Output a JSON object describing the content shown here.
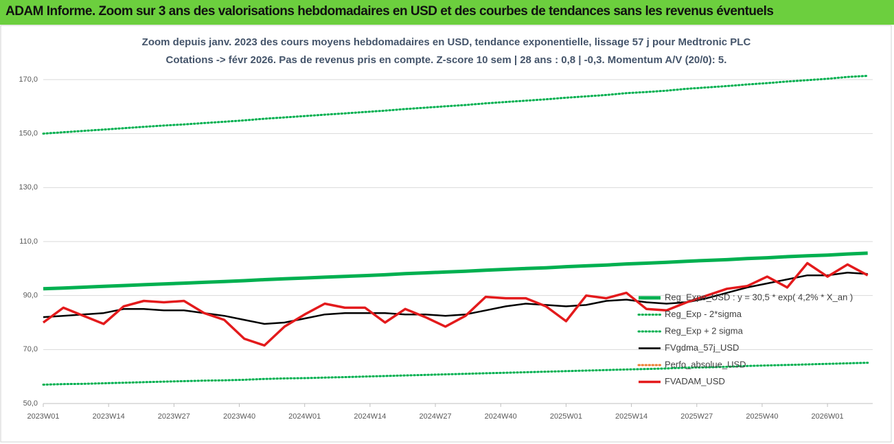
{
  "header": "ADAM Informe. Zoom sur 3 ans des valorisations hebdomadaires en USD et des courbes de tendances sans les revenus éventuels",
  "chart_data": {
    "type": "line",
    "title": [
      "Zoom depuis janv. 2023 des cours moyens hebdomadaires en USD, tendance exponentielle, lissage 57 j pour Medtronic PLC",
      "Cotations -> févr 2026. Pas de revenus pris en compte. Z-score 10 sem | 28 ans : 0,8 | -0,3. Momentum A/V (20/0): 5."
    ],
    "x": [
      0,
      4,
      8,
      12,
      16,
      20,
      24,
      28,
      32,
      36,
      40,
      44,
      48,
      52,
      56,
      60,
      64,
      68,
      72,
      76,
      80,
      84,
      88,
      92,
      96,
      100,
      104,
      108,
      112,
      116,
      120,
      124,
      128,
      132,
      136,
      140,
      144,
      148,
      152,
      156,
      160,
      164
    ],
    "xlim": [
      0,
      165
    ],
    "xticks": [
      {
        "value": 0,
        "label": "2023W01"
      },
      {
        "value": 13,
        "label": "2023W14"
      },
      {
        "value": 26,
        "label": "2023W27"
      },
      {
        "value": 39,
        "label": "2023W40"
      },
      {
        "value": 52,
        "label": "2024W01"
      },
      {
        "value": 65,
        "label": "2024W14"
      },
      {
        "value": 78,
        "label": "2024W27"
      },
      {
        "value": 91,
        "label": "2024W40"
      },
      {
        "value": 104,
        "label": "2025W01"
      },
      {
        "value": 117,
        "label": "2025W14"
      },
      {
        "value": 130,
        "label": "2025W27"
      },
      {
        "value": 143,
        "label": "2025W40"
      },
      {
        "value": 156,
        "label": "2026W01"
      }
    ],
    "ylim": [
      50,
      170
    ],
    "yticks": [
      {
        "value": 50,
        "label": "50,0"
      },
      {
        "value": 70,
        "label": "70,0"
      },
      {
        "value": 90,
        "label": "90,0"
      },
      {
        "value": 110,
        "label": "110,0"
      },
      {
        "value": 130,
        "label": "130,0"
      },
      {
        "value": 150,
        "label": "150,0"
      },
      {
        "value": 170,
        "label": "170,0"
      }
    ],
    "grid": true,
    "series": [
      {
        "name": "Reg_Expo_USD : y = 30,5 * exp( 4,2% *  X_an )",
        "color": "#00b050",
        "style": "thick",
        "values": [
          92.5,
          92.8,
          93.1,
          93.4,
          93.7,
          94.0,
          94.3,
          94.6,
          94.9,
          95.2,
          95.5,
          95.9,
          96.2,
          96.5,
          96.8,
          97.1,
          97.4,
          97.7,
          98.1,
          98.4,
          98.7,
          99.0,
          99.4,
          99.7,
          100.0,
          100.3,
          100.7,
          101.0,
          101.3,
          101.7,
          102.0,
          102.3,
          102.7,
          103.0,
          103.3,
          103.7,
          104.0,
          104.4,
          104.7,
          105.0,
          105.4,
          105.7
        ]
      },
      {
        "name": "Reg_Exp - 2*sigma",
        "color": "#00b050",
        "style": "dotted",
        "values": [
          57.0,
          57.2,
          57.3,
          57.5,
          57.7,
          57.9,
          58.1,
          58.3,
          58.5,
          58.6,
          58.8,
          59.1,
          59.3,
          59.4,
          59.6,
          59.8,
          60.0,
          60.2,
          60.4,
          60.6,
          60.8,
          61.0,
          61.2,
          61.4,
          61.6,
          61.8,
          62.0,
          62.2,
          62.4,
          62.6,
          62.8,
          63.0,
          63.3,
          63.4,
          63.6,
          63.9,
          64.1,
          64.3,
          64.5,
          64.7,
          64.9,
          65.1
        ]
      },
      {
        "name": "Reg_Exp + 2 sigma",
        "color": "#00b050",
        "style": "dotted",
        "values": [
          150.0,
          150.5,
          151.0,
          151.5,
          152.0,
          152.5,
          153.0,
          153.4,
          153.9,
          154.4,
          154.9,
          155.5,
          156.0,
          156.5,
          157.0,
          157.5,
          158.0,
          158.5,
          159.1,
          159.6,
          160.1,
          160.6,
          161.2,
          161.7,
          162.2,
          162.7,
          163.3,
          163.8,
          164.3,
          165.0,
          165.4,
          165.9,
          166.6,
          167.1,
          167.6,
          168.2,
          168.7,
          169.3,
          169.8,
          170.3,
          171.0,
          171.4
        ]
      },
      {
        "name": "FVgdma_57j_USD",
        "color": "#000000",
        "style": "solid",
        "values": [
          82,
          82.5,
          83,
          83.5,
          85,
          85,
          84.5,
          84.5,
          83.5,
          82.5,
          81,
          79.5,
          80,
          81.5,
          83,
          83.5,
          83.5,
          83.5,
          83,
          83,
          82.5,
          83,
          84.5,
          86,
          87,
          86.5,
          86,
          86.5,
          88,
          88.5,
          87.5,
          87,
          87.5,
          89,
          91,
          93,
          94.5,
          96,
          97.5,
          97.5,
          98.5,
          98
        ]
      },
      {
        "name": "Perfo_absolue_USD",
        "color": "#ed7d31",
        "style": "dotted",
        "values": [
          null,
          null,
          null,
          null,
          null,
          null,
          null,
          null,
          null,
          null,
          null,
          null,
          null,
          null,
          null,
          null,
          null,
          null,
          null,
          null,
          null,
          null,
          null,
          null,
          null,
          null,
          null,
          null,
          null,
          null,
          null,
          null,
          null,
          null,
          null,
          null,
          null,
          null,
          null,
          null,
          null,
          null
        ]
      },
      {
        "name": "FVADAM_USD",
        "color": "#e31a1c",
        "style": "thick",
        "values": [
          80,
          85.5,
          82.5,
          79.5,
          86,
          88,
          87.5,
          88,
          83.5,
          81,
          74,
          71.5,
          78.5,
          83,
          87,
          85.5,
          85.5,
          80,
          85,
          82,
          78.5,
          82.5,
          89.5,
          89,
          89,
          86,
          80.5,
          90,
          89,
          91,
          85,
          84.5,
          87.5,
          90,
          92.5,
          93.5,
          97,
          93,
          102,
          97,
          101.5,
          97.5
        ]
      }
    ],
    "legend": "right"
  }
}
